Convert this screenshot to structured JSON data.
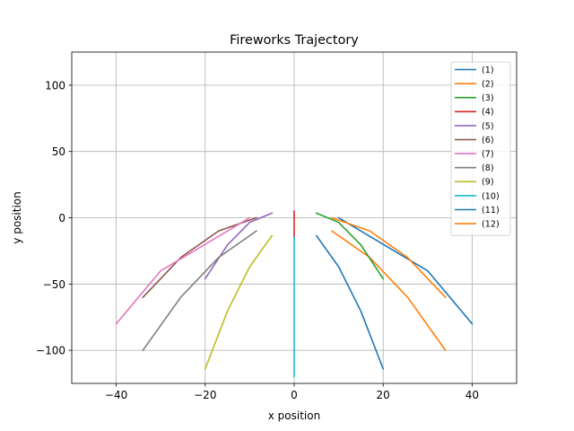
{
  "chart_data": {
    "type": "line",
    "title": "Fireworks Trajectory",
    "xlabel": "x position",
    "ylabel": "y position",
    "xlim": [
      -50,
      50
    ],
    "ylim": [
      -125,
      125
    ],
    "xticks": [
      -40,
      -20,
      0,
      20,
      40
    ],
    "yticks": [
      -100,
      -50,
      0,
      50,
      100
    ],
    "xtick_labels": [
      "−40",
      "−20",
      "0",
      "20",
      "40"
    ],
    "ytick_labels": [
      "−100",
      "−50",
      "0",
      "50",
      "100"
    ],
    "grid": true,
    "legend_position": "upper right",
    "series": [
      {
        "name": "(1)",
        "color": "#1f77b4",
        "x": [
          5,
          10,
          15,
          20
        ],
        "y": [
          -13.5,
          -37,
          -70.5,
          -114
        ]
      },
      {
        "name": "(2)",
        "color": "#ff7f0e",
        "x": [
          8.5,
          17,
          25.5,
          34
        ],
        "y": [
          -10,
          -30,
          -60,
          -100
        ]
      },
      {
        "name": "(3)",
        "color": "#2ca02c",
        "x": [
          5,
          10,
          15,
          20
        ],
        "y": [
          3.5,
          -3.5,
          -20.5,
          -46
        ]
      },
      {
        "name": "(4)",
        "color": "#d62728",
        "x": [
          0,
          0,
          0,
          0
        ],
        "y": [
          5,
          0,
          -5,
          -15
        ]
      },
      {
        "name": "(5)",
        "color": "#9467bd",
        "x": [
          -5,
          -10,
          -15,
          -20
        ],
        "y": [
          3.5,
          -3.5,
          -20.5,
          -46
        ]
      },
      {
        "name": "(6)",
        "color": "#8c564b",
        "x": [
          -8.5,
          -17,
          -25.5,
          -34
        ],
        "y": [
          0,
          -10,
          -30,
          -60
        ]
      },
      {
        "name": "(7)",
        "color": "#e377c2",
        "x": [
          -10,
          -20,
          -30,
          -40
        ],
        "y": [
          0,
          -20,
          -40,
          -80
        ]
      },
      {
        "name": "(8)",
        "color": "#7f7f7f",
        "x": [
          -8.5,
          -17,
          -25.5,
          -34
        ],
        "y": [
          -10,
          -30,
          -60,
          -100
        ]
      },
      {
        "name": "(9)",
        "color": "#bcbd22",
        "x": [
          -5,
          -10,
          -15,
          -20
        ],
        "y": [
          -13.5,
          -37,
          -70.5,
          -114
        ]
      },
      {
        "name": "(10)",
        "color": "#17becf",
        "x": [
          0,
          0,
          0,
          0
        ],
        "y": [
          -15,
          -40,
          -80,
          -120
        ]
      },
      {
        "name": "(11)",
        "color": "#1f77b4",
        "x": [
          10,
          20,
          30,
          40
        ],
        "y": [
          0,
          -20,
          -40,
          -80
        ]
      },
      {
        "name": "(12)",
        "color": "#ff7f0e",
        "x": [
          8.5,
          17,
          25.5,
          34
        ],
        "y": [
          0,
          -10,
          -30,
          -60
        ]
      }
    ]
  }
}
